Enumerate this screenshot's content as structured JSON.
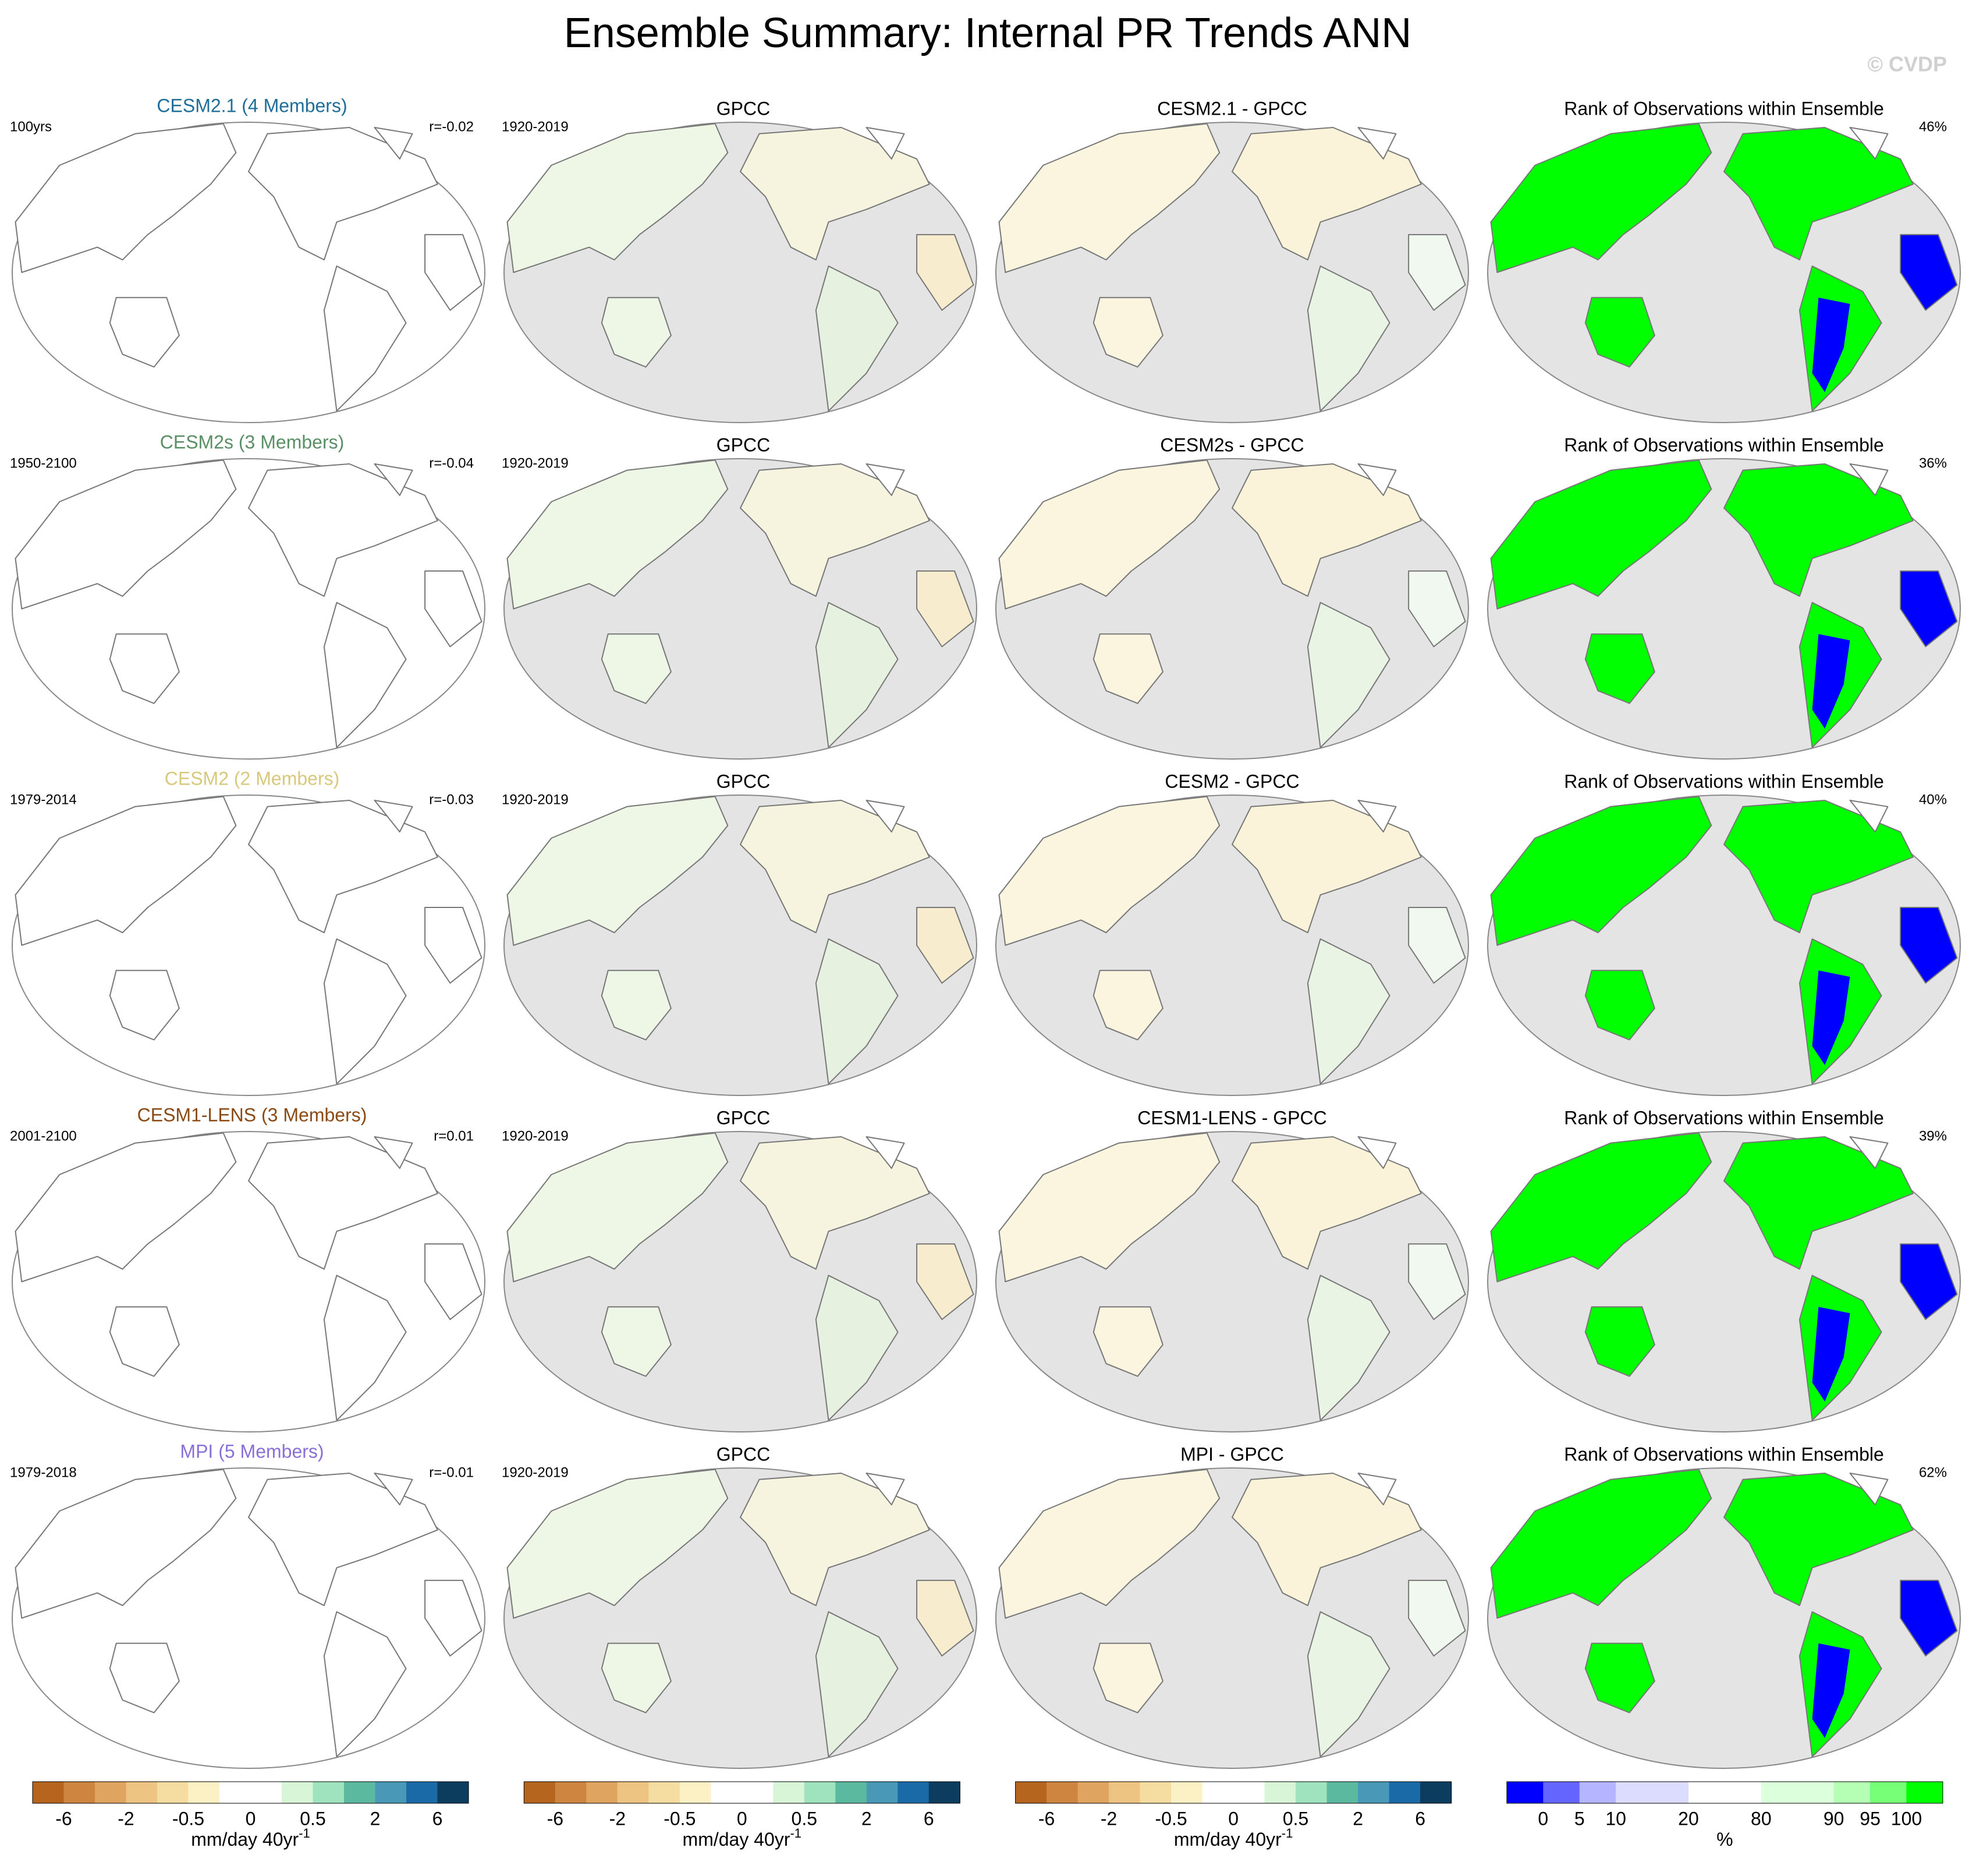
{
  "title": "Ensemble Summary: Internal PR Trends ANN",
  "watermark": "© CVDP",
  "rows": [
    {
      "model": {
        "text": "CESM2.1 (4 Members)",
        "color": "#1f6e9a"
      },
      "period": "100yrs",
      "r": "r=-0.02",
      "obs_title": "GPCC",
      "obs_period": "1920-2019",
      "diff_title": "CESM2.1 - GPCC",
      "rank_title": "Rank of Observations within Ensemble",
      "rank_pct": "46%"
    },
    {
      "model": {
        "text": "CESM2s (3 Members)",
        "color": "#5a8f66"
      },
      "period": "1950-2100",
      "r": "r=-0.04",
      "obs_title": "GPCC",
      "obs_period": "1920-2019",
      "diff_title": "CESM2s - GPCC",
      "rank_title": "Rank of Observations within Ensemble",
      "rank_pct": "36%"
    },
    {
      "model": {
        "text": "CESM2 (2 Members)",
        "color": "#d8c87c"
      },
      "period": "1979-2014",
      "r": "r=-0.03",
      "obs_title": "GPCC",
      "obs_period": "1920-2019",
      "diff_title": "CESM2 - GPCC",
      "rank_title": "Rank of Observations within Ensemble",
      "rank_pct": "40%"
    },
    {
      "model": {
        "text": "CESM1-LENS (3 Members)",
        "color": "#8b4a14"
      },
      "period": "2001-2100",
      "r": "r=0.01",
      "obs_title": "GPCC",
      "obs_period": "1920-2019",
      "diff_title": "CESM1-LENS - GPCC",
      "rank_title": "Rank of Observations within Ensemble",
      "rank_pct": "39%"
    },
    {
      "model": {
        "text": "MPI (5 Members)",
        "color": "#8a6fd8"
      },
      "period": "1979-2018",
      "r": "r=-0.01",
      "obs_title": "GPCC",
      "obs_period": "1920-2019",
      "diff_title": "MPI - GPCC",
      "rank_title": "Rank of Observations within Ensemble",
      "rank_pct": "62%"
    }
  ],
  "colorbars": [
    {
      "colors": [
        "#b5651d",
        "#cd8540",
        "#dfa45f",
        "#eec483",
        "#f5dda2",
        "#fbf1c5",
        "#ffffff",
        "#ffffff",
        "#d8f5d8",
        "#9fe3be",
        "#5bb9a0",
        "#4a98b8",
        "#1a6aa8",
        "#0c3c5e"
      ],
      "ticks": [
        -6,
        -2,
        -0.5,
        0,
        0.5,
        2,
        6
      ],
      "units": "mm/day 40yr",
      "units_sup": "-1"
    },
    {
      "colors": [
        "#b5651d",
        "#cd8540",
        "#dfa45f",
        "#eec483",
        "#f5dda2",
        "#fbf1c5",
        "#ffffff",
        "#ffffff",
        "#d8f5d8",
        "#9fe3be",
        "#5bb9a0",
        "#4a98b8",
        "#1a6aa8",
        "#0c3c5e"
      ],
      "ticks": [
        -6,
        -2,
        -0.5,
        0,
        0.5,
        2,
        6
      ],
      "units": "mm/day 40yr",
      "units_sup": "-1"
    },
    {
      "colors": [
        "#b5651d",
        "#cd8540",
        "#dfa45f",
        "#eec483",
        "#f5dda2",
        "#fbf1c5",
        "#ffffff",
        "#ffffff",
        "#d8f5d8",
        "#9fe3be",
        "#5bb9a0",
        "#4a98b8",
        "#1a6aa8",
        "#0c3c5e"
      ],
      "ticks": [
        -6,
        -2,
        -0.5,
        0,
        0.5,
        2,
        6
      ],
      "units": "mm/day 40yr",
      "units_sup": "-1"
    },
    {
      "colors": [
        "#0000ff",
        "#6464ff",
        "#b4b4ff",
        "#dcdcff",
        "#dcdcff",
        "#ffffff",
        "#ffffff",
        "#dcffdc",
        "#dcffdc",
        "#b4ffb4",
        "#78ff78",
        "#00ff00"
      ],
      "ticks": [
        0,
        5,
        10,
        20,
        80,
        90,
        95,
        100
      ],
      "units": "%"
    }
  ]
}
